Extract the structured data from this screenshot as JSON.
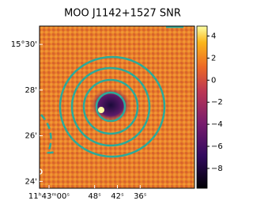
{
  "chart_data": {
    "type": "image",
    "title": "MOO J1142+1527 SNR",
    "xlim": [
      62.5,
      21.7
    ],
    "xticks": [
      {
        "value": 60,
        "label": "11ʰ43ᵐ00ˢ"
      },
      {
        "value": 48,
        "label": "48ˢ"
      },
      {
        "value": 42,
        "label": "42ˢ"
      },
      {
        "value": 36,
        "label": "36ˢ"
      }
    ],
    "ylim": [
      23.7,
      30.8
    ],
    "yticks": [
      {
        "value": 30,
        "label": "15°30'"
      },
      {
        "value": 28,
        "label": "28'"
      },
      {
        "value": 26,
        "label": "26'"
      },
      {
        "value": 24,
        "label": "24'"
      }
    ],
    "colorbar": {
      "lim": [
        -9.8,
        4.9
      ],
      "ticks": [
        4,
        2,
        0,
        {
          "value": -2,
          "label": "−2"
        },
        {
          "value": -4,
          "label": "−4"
        },
        {
          "value": -6,
          "label": "−6"
        },
        {
          "value": -8,
          "label": "−8"
        }
      ]
    },
    "contour_color": "#2aaa9a"
  }
}
